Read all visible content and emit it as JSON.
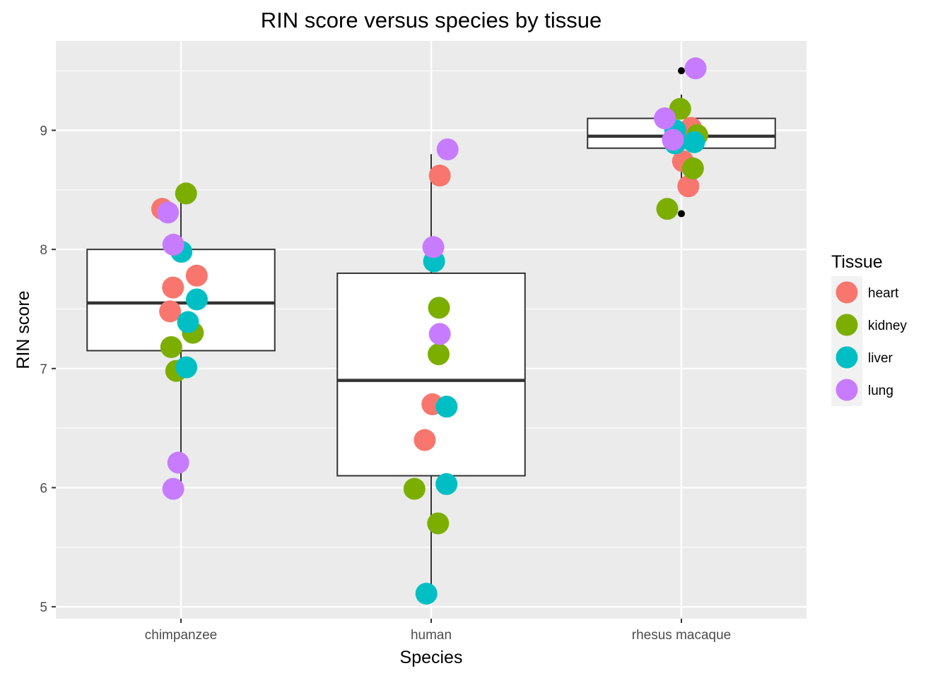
{
  "chart_data": {
    "type": "box",
    "title": "RIN score versus species by tissue",
    "xlabel": "Species",
    "ylabel": "RIN score",
    "categories": [
      "chimpanzee",
      "human",
      "rhesus macaque"
    ],
    "ylim": [
      4.9,
      9.75
    ],
    "y_ticks": [
      "5",
      "6",
      "7",
      "8",
      "9"
    ],
    "grid": true,
    "legend": {
      "title": "Tissue",
      "position": "right",
      "entries": [
        "heart",
        "kidney",
        "liver",
        "lung"
      ]
    },
    "colors": {
      "heart": "#F8766D",
      "kidney": "#7CAE00",
      "liver": "#00BFC4",
      "lung": "#C77CFF",
      "panel": "#EBEBEB",
      "grid": "#FFFFFF",
      "box_stroke": "#333333",
      "box_fill": "#FFFFFF"
    },
    "boxes": [
      {
        "category": "chimpanzee",
        "min": 6.0,
        "q1": 7.15,
        "median": 7.55,
        "q3": 8.0,
        "max": 8.5,
        "outliers": []
      },
      {
        "category": "human",
        "min": 5.1,
        "q1": 6.1,
        "median": 6.9,
        "q3": 7.8,
        "max": 8.8,
        "outliers": []
      },
      {
        "category": "rhesus macaque",
        "min": 8.5,
        "q1": 8.85,
        "median": 8.95,
        "q3": 9.1,
        "max": 9.3,
        "outliers": [
          8.3,
          9.5
        ]
      }
    ],
    "series": [
      {
        "name": "heart",
        "points": [
          {
            "x": "chimpanzee",
            "y": 8.34
          },
          {
            "x": "chimpanzee",
            "y": 7.78
          },
          {
            "x": "chimpanzee",
            "y": 7.68
          },
          {
            "x": "chimpanzee",
            "y": 7.48
          },
          {
            "x": "human",
            "y": 8.62
          },
          {
            "x": "human",
            "y": 6.7
          },
          {
            "x": "human",
            "y": 6.4
          },
          {
            "x": "rhesus macaque",
            "y": 8.92
          },
          {
            "x": "rhesus macaque",
            "y": 9.02
          },
          {
            "x": "rhesus macaque",
            "y": 8.74
          },
          {
            "x": "rhesus macaque",
            "y": 8.53
          }
        ]
      },
      {
        "name": "kidney",
        "points": [
          {
            "x": "chimpanzee",
            "y": 8.47
          },
          {
            "x": "chimpanzee",
            "y": 7.3
          },
          {
            "x": "chimpanzee",
            "y": 7.18
          },
          {
            "x": "chimpanzee",
            "y": 6.98
          },
          {
            "x": "human",
            "y": 7.51
          },
          {
            "x": "human",
            "y": 7.12
          },
          {
            "x": "human",
            "y": 5.99
          },
          {
            "x": "human",
            "y": 5.7
          },
          {
            "x": "rhesus macaque",
            "y": 9.18
          },
          {
            "x": "rhesus macaque",
            "y": 8.96
          },
          {
            "x": "rhesus macaque",
            "y": 8.68
          },
          {
            "x": "rhesus macaque",
            "y": 8.34
          }
        ]
      },
      {
        "name": "liver",
        "points": [
          {
            "x": "chimpanzee",
            "y": 7.98
          },
          {
            "x": "chimpanzee",
            "y": 7.58
          },
          {
            "x": "chimpanzee",
            "y": 7.39
          },
          {
            "x": "chimpanzee",
            "y": 7.01
          },
          {
            "x": "human",
            "y": 7.9
          },
          {
            "x": "human",
            "y": 6.68
          },
          {
            "x": "human",
            "y": 6.03
          },
          {
            "x": "human",
            "y": 5.11
          },
          {
            "x": "rhesus macaque",
            "y": 9.0
          },
          {
            "x": "rhesus macaque",
            "y": 8.9
          },
          {
            "x": "rhesus macaque",
            "y": 8.89
          }
        ]
      },
      {
        "name": "lung",
        "points": [
          {
            "x": "chimpanzee",
            "y": 8.31
          },
          {
            "x": "chimpanzee",
            "y": 8.04
          },
          {
            "x": "chimpanzee",
            "y": 6.21
          },
          {
            "x": "chimpanzee",
            "y": 5.99
          },
          {
            "x": "human",
            "y": 8.84
          },
          {
            "x": "human",
            "y": 8.02
          },
          {
            "x": "human",
            "y": 7.29
          },
          {
            "x": "rhesus macaque",
            "y": 9.52
          },
          {
            "x": "rhesus macaque",
            "y": 9.1
          },
          {
            "x": "rhesus macaque",
            "y": 8.92
          }
        ]
      }
    ]
  }
}
